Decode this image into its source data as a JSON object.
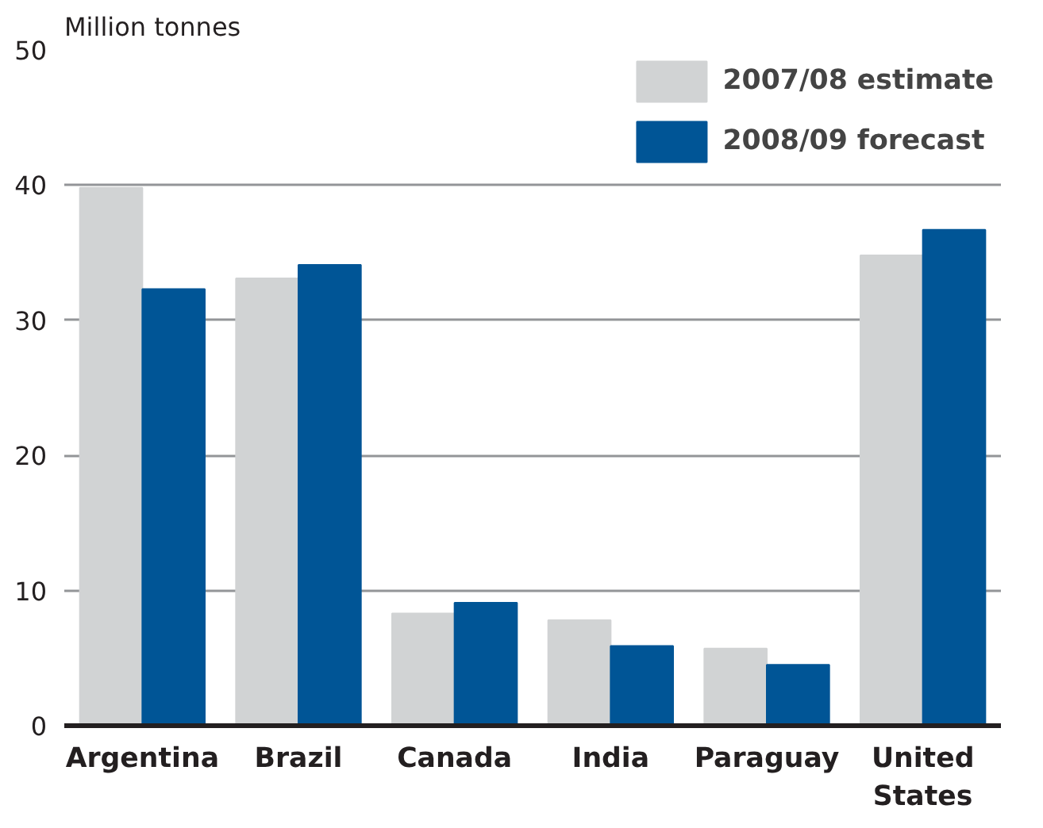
{
  "chart_data": {
    "type": "bar",
    "ylabel": "Million tonnes",
    "categories": [
      "Argentina",
      "Brazil",
      "Canada",
      "India",
      "Paraguay",
      "United States"
    ],
    "series": [
      {
        "name": "2007/08 estimate",
        "color": "#d1d3d4",
        "values": [
          39.8,
          33.1,
          8.3,
          7.8,
          5.7,
          34.8
        ]
      },
      {
        "name": "2008/09 forecast",
        "color": "#005596",
        "values": [
          32.3,
          34.1,
          9.1,
          5.9,
          4.5,
          36.7
        ]
      }
    ],
    "ylim": [
      0,
      50
    ],
    "yticks": [
      0,
      10,
      20,
      30,
      40,
      50
    ],
    "grid": "y",
    "legend": "top right"
  }
}
